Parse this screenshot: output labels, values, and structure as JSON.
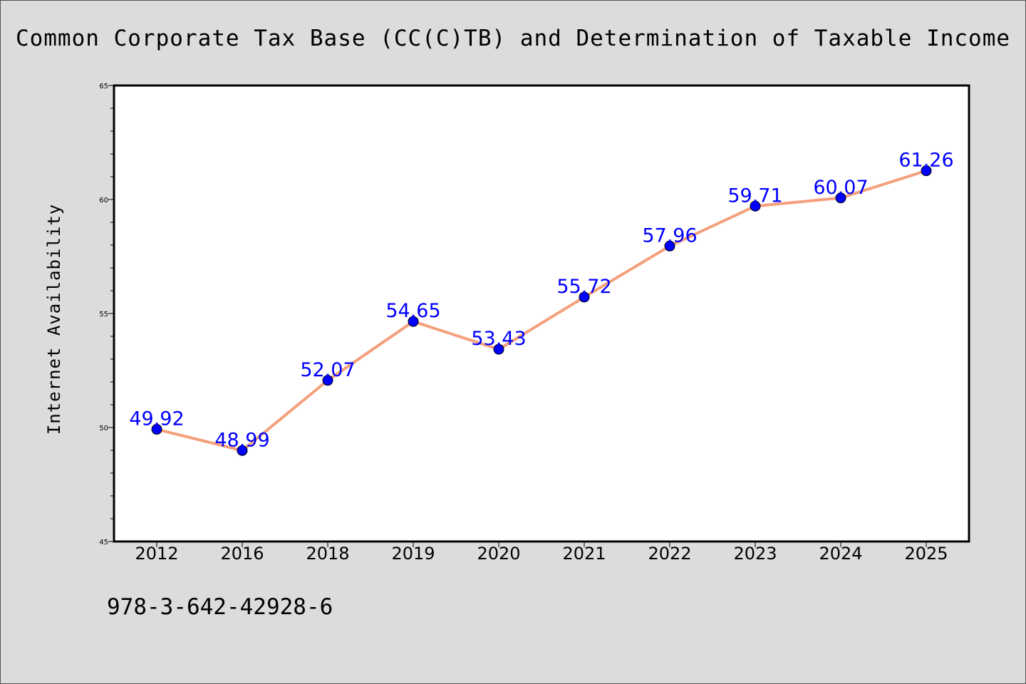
{
  "chart_data": {
    "type": "line",
    "title": "Common Corporate Tax Base (CC(C)TB) and Determination of Taxable Income",
    "xlabel": "",
    "ylabel": "Internet Availability",
    "categories": [
      "2012",
      "2016",
      "2018",
      "2019",
      "2020",
      "2021",
      "2022",
      "2023",
      "2024",
      "2025"
    ],
    "series": [
      {
        "values": [
          49.92,
          48.99,
          52.07,
          54.65,
          53.43,
          55.72,
          57.96,
          59.71,
          60.07,
          61.26
        ],
        "labels": [
          "49.92",
          "48.99",
          "52.07",
          "54.65",
          "53.43",
          "55.72",
          "57.96",
          "59.71",
          "60.07",
          "61.26"
        ]
      }
    ],
    "ylim": [
      45,
      65
    ],
    "yticks": [
      "45",
      "50",
      "55",
      "60",
      "65"
    ],
    "grid": false,
    "colors": {
      "line": "#f4a07c",
      "marker": "#0000ff",
      "data_label": "#0000ff",
      "background": "#dcdcdc",
      "plot_background": "#ffffff"
    }
  },
  "footer": {
    "code": "978-3-642-42928-6"
  }
}
